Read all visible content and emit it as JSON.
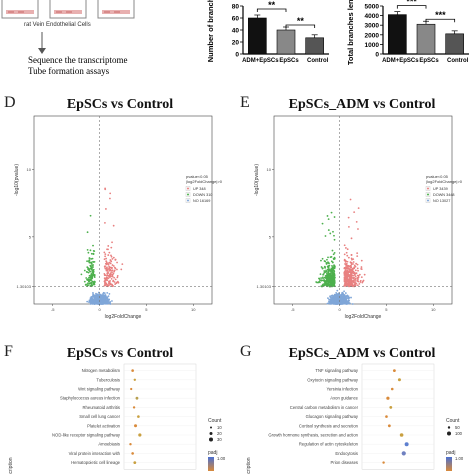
{
  "schematic": {
    "cell_label": "rat Vein Endothelial Cells",
    "step1": "Sequence the transcriptome",
    "step2": "Tube formation assays"
  },
  "panel_D": {
    "letter": "D",
    "title": "EpSCs vs Control",
    "legend_title_1": "pvalue<0.05",
    "legend_title_2": "|log2FoldChange|>0",
    "legend_up": "UP 348",
    "legend_down": "DOWN 310",
    "legend_no": "NO 16169",
    "xlabel": "log2FoldChange",
    "ylabel": "-log10(pvalue)"
  },
  "panel_E": {
    "letter": "E",
    "title": "EpSCs_ADM vs Control",
    "legend_title_1": "pvalue<0.05",
    "legend_title_2": "|log2FoldChange|>0",
    "legend_up": "UP 3439",
    "legend_down": "DOWN 3448",
    "legend_no": "NO 13027",
    "xlabel": "log2FoldChange",
    "ylabel": "-log10(pvalue)"
  },
  "panel_F": {
    "letter": "F",
    "title": "EpSCs vs Control",
    "ylabel": "Description",
    "terms": [
      "Nitrogen metabolism",
      "Tuberculosis",
      "Wnt signaling pathway",
      "Staphylococcus aureus infection",
      "Rheumatoid arthritis",
      "Small cell lung cancer",
      "Platelet activation",
      "NOD-like receptor signaling pathway",
      "Amoebiasis",
      "Viral protein interaction with",
      "Hematopoietic cell lineage"
    ],
    "count_title": "Count",
    "count_values": [
      "10",
      "20",
      "30"
    ],
    "padj_title": "padj",
    "padj_value": "1.00"
  },
  "panel_G": {
    "letter": "G",
    "title": "EpSCs_ADM vs Control",
    "ylabel": "Description",
    "terms": [
      "TNF signaling pathway",
      "Oxytocin signaling pathway",
      "Yersinia infection",
      "Axon guidance",
      "Central carbon metabolism in cancer",
      "Glucagon signaling pathway",
      "Cortisol synthesis and secretion",
      "Growth hormone synthesis, secretion and action",
      "Regulation of actin cytoskeleton",
      "Endocytosis",
      "Prion diseases"
    ],
    "count_title": "Count",
    "count_values": [
      "50",
      "100"
    ],
    "padj_title": "padj",
    "padj_value": "1.00"
  },
  "chart_data": [
    {
      "type": "bar",
      "title": "",
      "categories": [
        "ADM+EpSCs",
        "EpSCs",
        "Control"
      ],
      "values": [
        60,
        40,
        27
      ],
      "ylabel": "Number of branch",
      "ylim": [
        0,
        80
      ],
      "yticks": [
        "0",
        "20",
        "40",
        "60",
        "80"
      ],
      "significance": [
        "**",
        "**"
      ]
    },
    {
      "type": "bar",
      "title": "",
      "categories": [
        "ADM+EpSCs",
        "EpSCs",
        "Control"
      ],
      "values": [
        4100,
        3100,
        2100
      ],
      "ylabel": "Total branches leng",
      "ylim": [
        0,
        5000
      ],
      "yticks": [
        "0",
        "1000",
        "2000",
        "3000",
        "4000",
        "5000"
      ],
      "significance": [
        "***",
        "***"
      ]
    },
    {
      "type": "scatter",
      "title": "EpSCs vs Control",
      "xlabel": "log2FoldChange",
      "ylabel": "-log10(pvalue)",
      "xticks": [
        "-5",
        "0",
        "5",
        "10"
      ],
      "yticks": [
        "1.30103",
        "5",
        "10"
      ],
      "series": [
        {
          "name": "UP 348",
          "color": "#e88080"
        },
        {
          "name": "DOWN 310",
          "color": "#4db04d"
        },
        {
          "name": "NO 16169",
          "color": "#7fa6d8"
        }
      ]
    },
    {
      "type": "scatter",
      "title": "EpSCs_ADM vs Control",
      "xlabel": "log2FoldChange",
      "ylabel": "-log10(pvalue)",
      "xticks": [
        "-5",
        "0",
        "5",
        "10"
      ],
      "yticks": [
        "1.30103",
        "5",
        "10"
      ],
      "series": [
        {
          "name": "UP 3439",
          "color": "#e88080"
        },
        {
          "name": "DOWN 3448",
          "color": "#4db04d"
        },
        {
          "name": "NO 13027",
          "color": "#7fa6d8"
        }
      ]
    }
  ]
}
